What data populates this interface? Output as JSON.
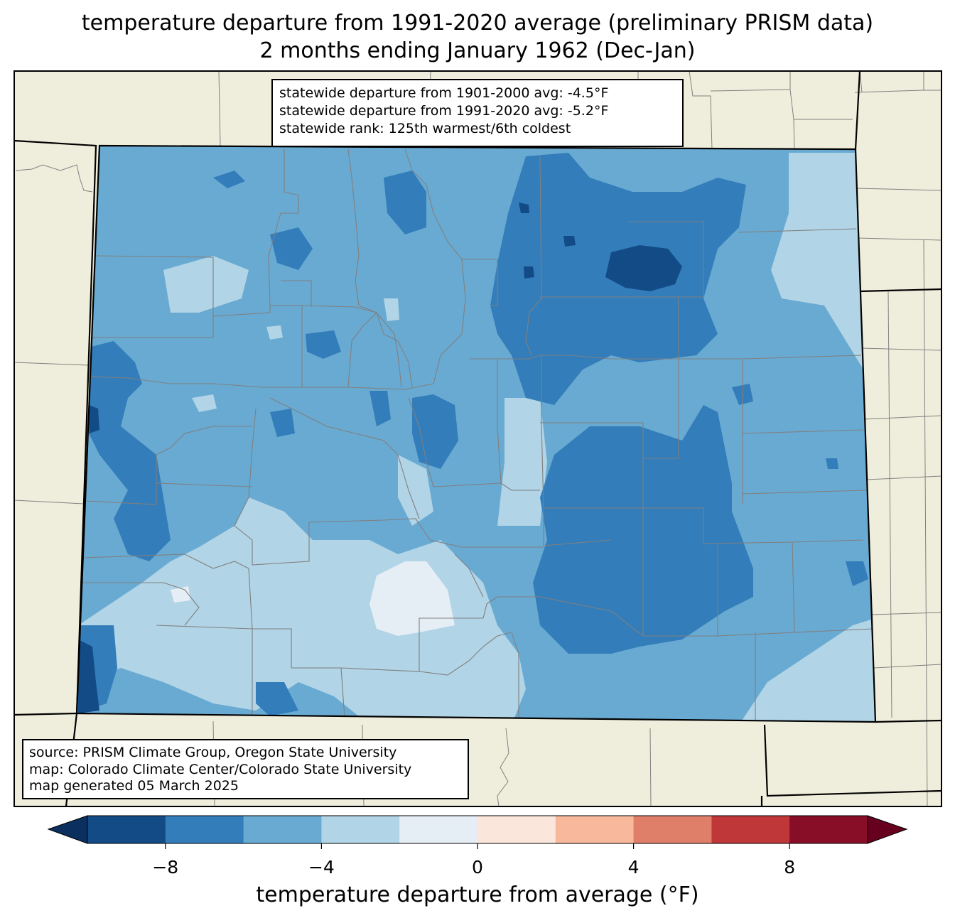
{
  "title": {
    "line1": "temperature departure from 1991-2020 average (preliminary PRISM data)",
    "line2": "2 months ending January 1962 (Dec-Jan)"
  },
  "stats": {
    "line1": "statewide departure from 1901-2000 avg: -4.5°F",
    "line2": "statewide departure from 1991-2020 avg: -5.2°F",
    "line3": "statewide rank: 125th warmest/6th coldest"
  },
  "source": {
    "line1": "source: PRISM Climate Group, Oregon State University",
    "line2": "map: Colorado Climate Center/Colorado State University",
    "line3": "map generated 05 March 2025"
  },
  "colorbar": {
    "label": "temperature departure from average (°F)",
    "ticks": [
      "−8",
      "−4",
      "0",
      "4",
      "8"
    ],
    "bins": [
      {
        "from": -10,
        "to": -8,
        "color": "#134b86"
      },
      {
        "from": -8,
        "to": -6,
        "color": "#327dba"
      },
      {
        "from": -6,
        "to": -4,
        "color": "#69aad2"
      },
      {
        "from": -4,
        "to": -2,
        "color": "#b1d4e6"
      },
      {
        "from": -2,
        "to": 0,
        "color": "#e6eef5"
      },
      {
        "from": 0,
        "to": 2,
        "color": "#fbe6dc"
      },
      {
        "from": 2,
        "to": 4,
        "color": "#f7b89c"
      },
      {
        "from": 4,
        "to": 6,
        "color": "#e07f69"
      },
      {
        "from": 6,
        "to": 8,
        "color": "#c0373a"
      },
      {
        "from": 8,
        "to": 10,
        "color": "#880d27"
      }
    ],
    "under_color": "#0b2f5e",
    "over_color": "#67001f"
  },
  "colors": {
    "land": "#efeedc",
    "county_lines": "#808080",
    "state_lines": "#000000"
  }
}
